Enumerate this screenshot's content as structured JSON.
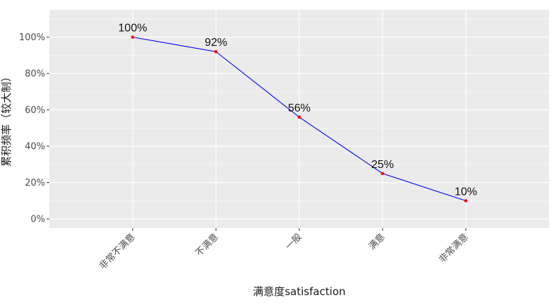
{
  "chart_data": {
    "type": "line",
    "categories": [
      "非常不满意",
      "不满意",
      "一般",
      "满意",
      "非常满意"
    ],
    "values": [
      100,
      92,
      56,
      25,
      10
    ],
    "data_labels": [
      "100%",
      "92%",
      "56%",
      "25%",
      "10%"
    ],
    "title": "",
    "xlabel": "满意度satisfaction",
    "ylabel": "累积频率（较大制）",
    "ylim": [
      -5,
      115
    ],
    "y_ticks": [
      0,
      20,
      40,
      60,
      80,
      100
    ],
    "y_tick_labels": [
      "0%",
      "20%",
      "40%",
      "60%",
      "80%",
      "100%"
    ],
    "grid": true,
    "legend": "none",
    "colors": {
      "line": "#0000ff",
      "point": "#ff0000",
      "panel": "#ebebeb",
      "grid": "#ffffff"
    }
  }
}
